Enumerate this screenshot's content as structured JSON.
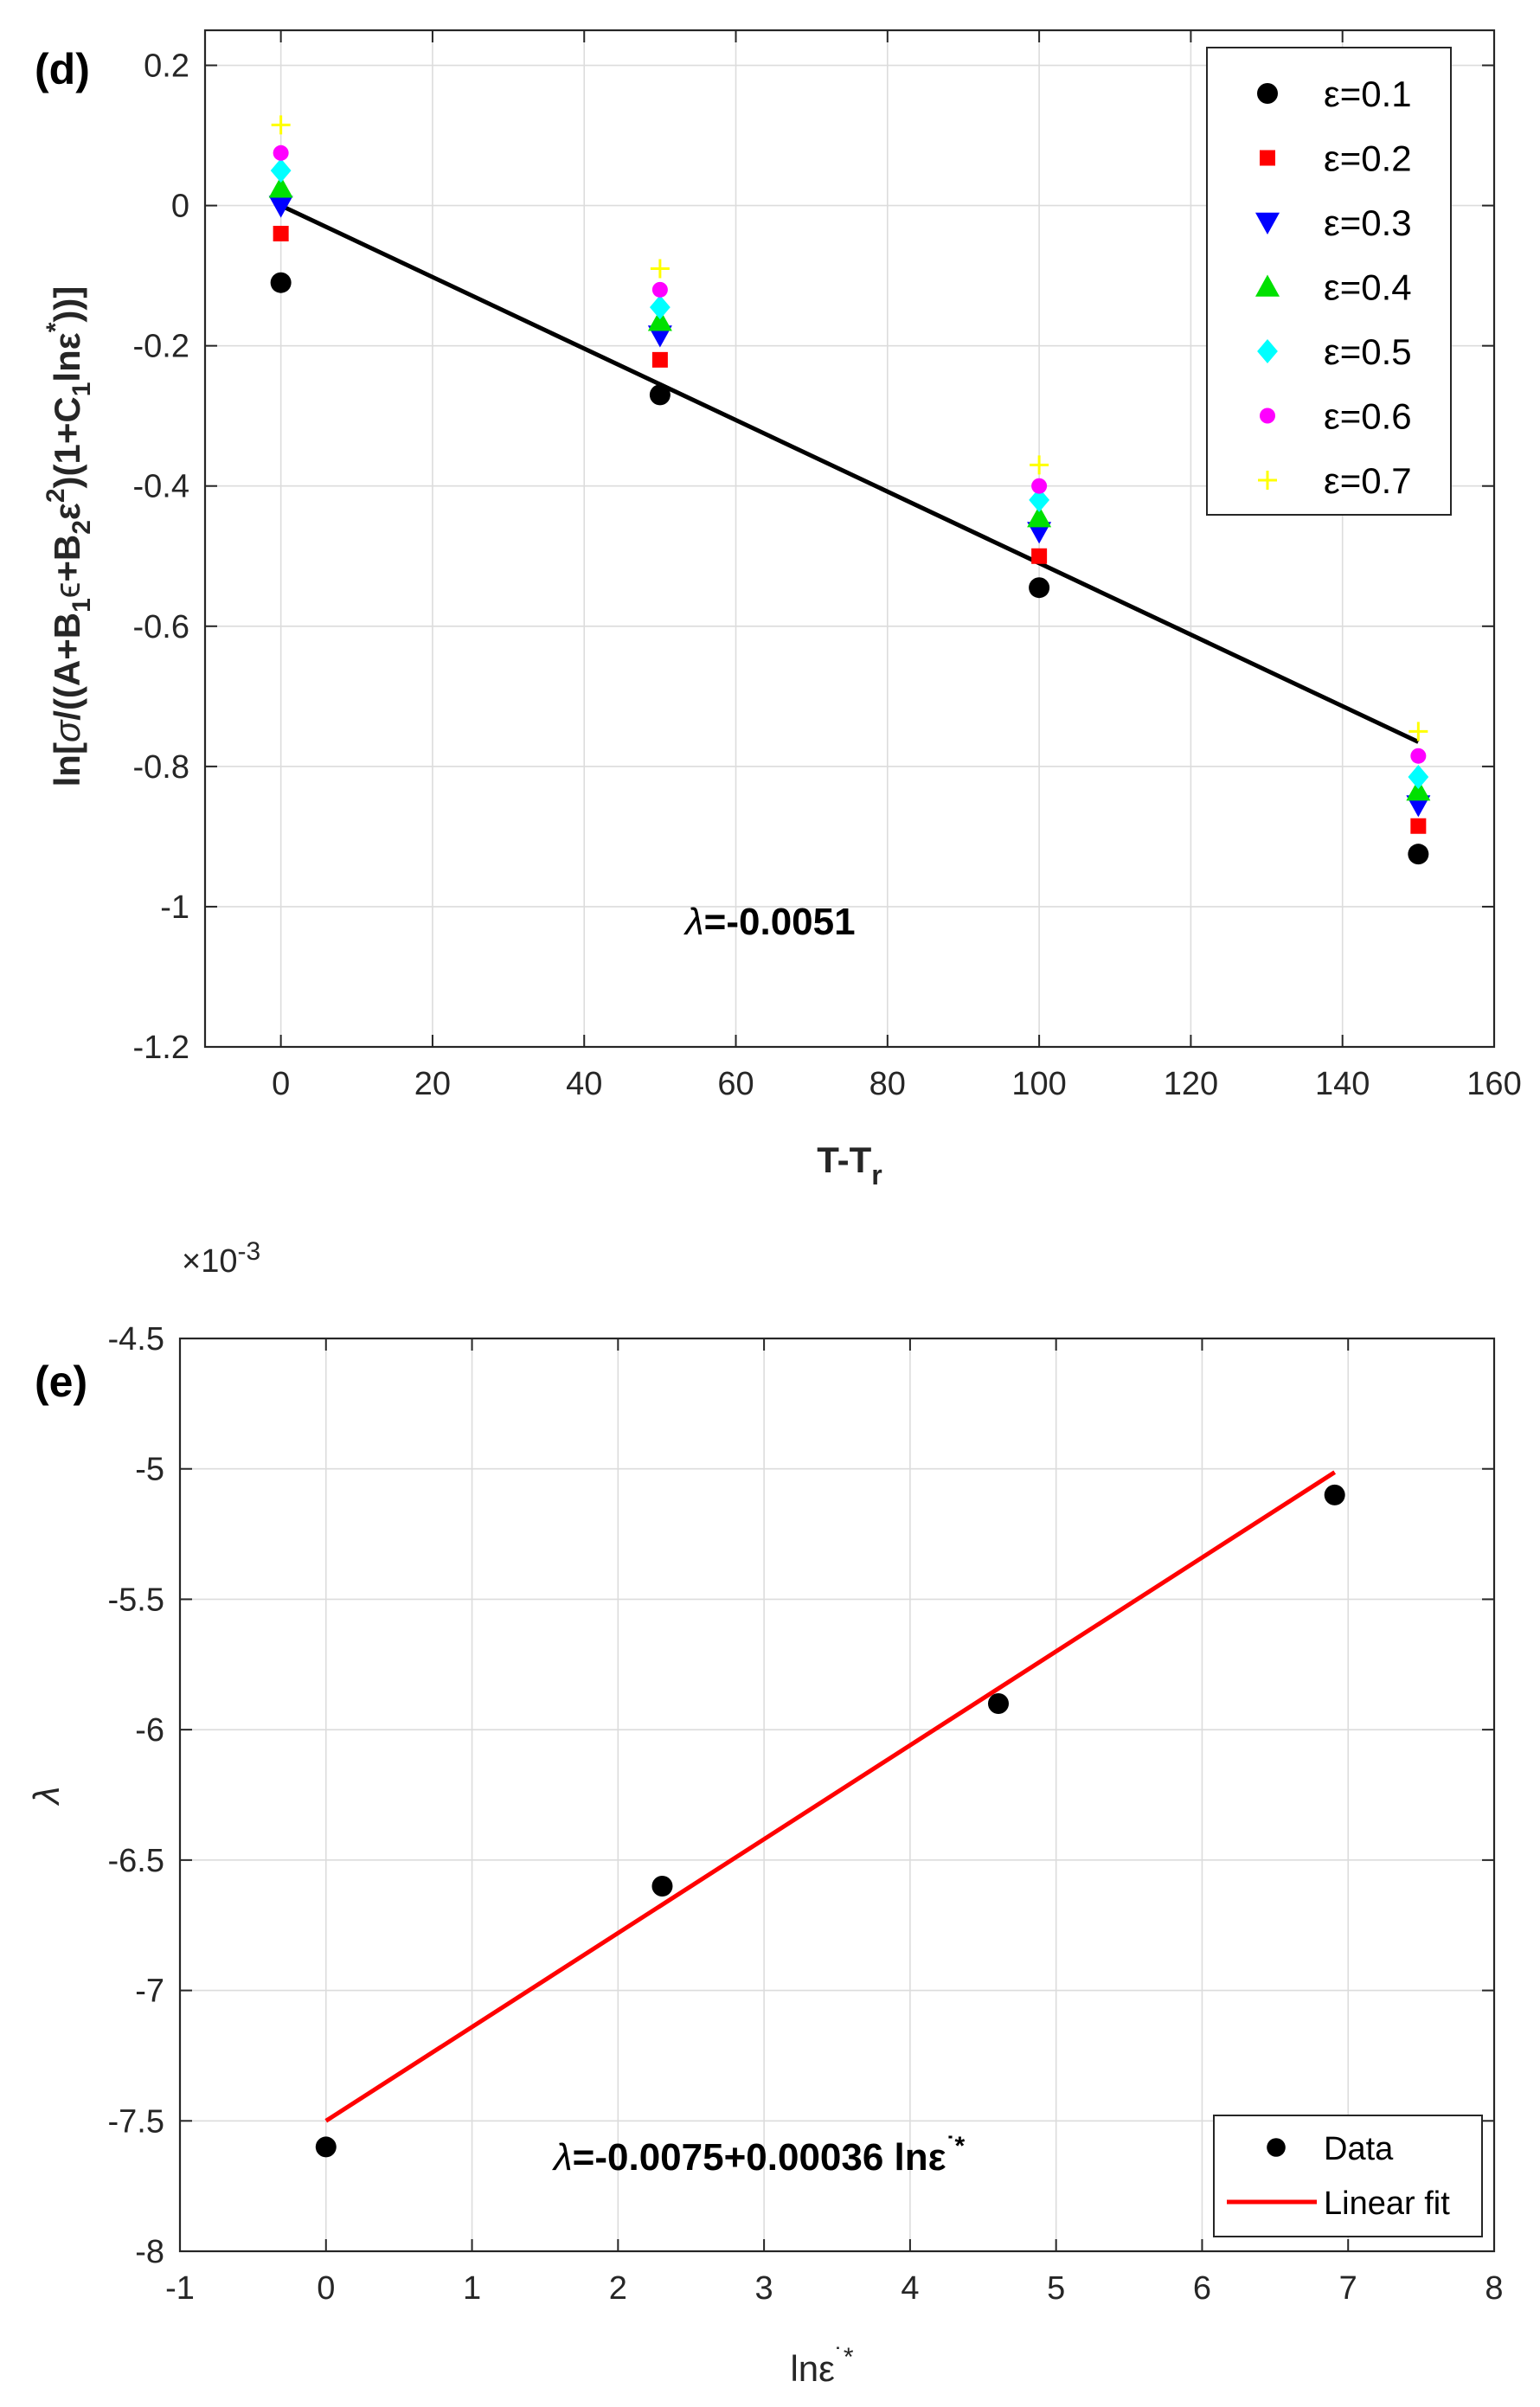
{
  "chart_data": [
    {
      "type": "scatter",
      "panel_label": "(d)",
      "xlabel": {
        "main": "T-T",
        "sub": "r"
      },
      "ylabel_parts": [
        "ln[",
        "σ",
        "/((A+B",
        "1",
        "ϵ",
        "+B",
        "2",
        "ε",
        "2",
        ")(1+C",
        "1",
        "lnε",
        "*",
        "))]"
      ],
      "xlim": [
        -10,
        160
      ],
      "ylim": [
        -1.2,
        0.25
      ],
      "x_ticks": [
        0,
        20,
        40,
        60,
        80,
        100,
        120,
        140,
        160
      ],
      "y_ticks": [
        -1.2,
        -1,
        -0.8,
        -0.6,
        -0.4,
        -0.2,
        0,
        0.2
      ],
      "x_tick_labels": [
        "0",
        "20",
        "40",
        "60",
        "80",
        "100",
        "120",
        "140",
        "160"
      ],
      "y_tick_labels": [
        "-1.2",
        "-1",
        "-0.8",
        "-0.6",
        "-0.4",
        "-0.2",
        "0",
        "0.2"
      ],
      "grid": true,
      "legend_position": "top-right",
      "annotation": {
        "symbol": "λ",
        "text": "=-0.0051"
      },
      "x": [
        0,
        50,
        100,
        150
      ],
      "series": [
        {
          "name": "ε=0.1",
          "color": "#000000",
          "marker": "circle",
          "values": [
            -0.11,
            -0.27,
            -0.545,
            -0.925
          ]
        },
        {
          "name": "ε=0.2",
          "color": "#ff0000",
          "marker": "square",
          "values": [
            -0.04,
            -0.22,
            -0.5,
            -0.885
          ]
        },
        {
          "name": "ε=0.3",
          "color": "#0000ff",
          "marker": "triangle-down",
          "values": [
            0.0,
            -0.185,
            -0.465,
            -0.855
          ]
        },
        {
          "name": "ε=0.4",
          "color": "#00e000",
          "marker": "triangle-up",
          "values": [
            0.025,
            -0.165,
            -0.445,
            -0.835
          ]
        },
        {
          "name": "ε=0.5",
          "color": "#00ffff",
          "marker": "diamond",
          "values": [
            0.05,
            -0.145,
            -0.42,
            -0.815
          ]
        },
        {
          "name": "ε=0.6",
          "color": "#ff00ff",
          "marker": "circle-small",
          "values": [
            0.075,
            -0.12,
            -0.4,
            -0.785
          ]
        },
        {
          "name": "ε=0.7",
          "color": "#ffff00",
          "marker": "plus",
          "values": [
            0.115,
            -0.09,
            -0.37,
            -0.75
          ]
        }
      ],
      "fit_line": {
        "x": [
          0,
          150
        ],
        "y": [
          0.0,
          -0.765
        ],
        "color": "#000000"
      }
    },
    {
      "type": "scatter",
      "panel_label": "(e)",
      "xlabel": {
        "main": "lnε",
        "sup": "˙*"
      },
      "ylabel": "λ",
      "exponent_label": {
        "prefix": "×10",
        "exp": "-3"
      },
      "xlim": [
        -1,
        8
      ],
      "ylim": [
        -8,
        -4.5
      ],
      "x_ticks": [
        -1,
        0,
        1,
        2,
        3,
        4,
        5,
        6,
        7,
        8
      ],
      "y_ticks": [
        -8,
        -7.5,
        -7,
        -6.5,
        -6,
        -5.5,
        -5,
        -4.5
      ],
      "x_tick_labels": [
        "-1",
        "0",
        "1",
        "2",
        "3",
        "4",
        "5",
        "6",
        "7",
        "8"
      ],
      "y_tick_labels": [
        "-8",
        "-7.5",
        "-7",
        "-6.5",
        "-6",
        "-5.5",
        "-5",
        "-4.5"
      ],
      "grid": true,
      "legend_position": "bottom-right",
      "annotation": {
        "symbol": "λ",
        "text": "=-0.0075+0.00036 lnε",
        "sup": "˙*"
      },
      "series": [
        {
          "name": "Data",
          "color": "#000000",
          "marker": "circle",
          "x": [
            0,
            2.303,
            4.605,
            6.908
          ],
          "values": [
            -7.6,
            -6.6,
            -5.9,
            -5.1
          ]
        }
      ],
      "fit_line": {
        "name": "Linear fit",
        "color": "#ff0000",
        "x": [
          0,
          6.908
        ],
        "y": [
          -7.5,
          -5.013
        ]
      }
    }
  ]
}
